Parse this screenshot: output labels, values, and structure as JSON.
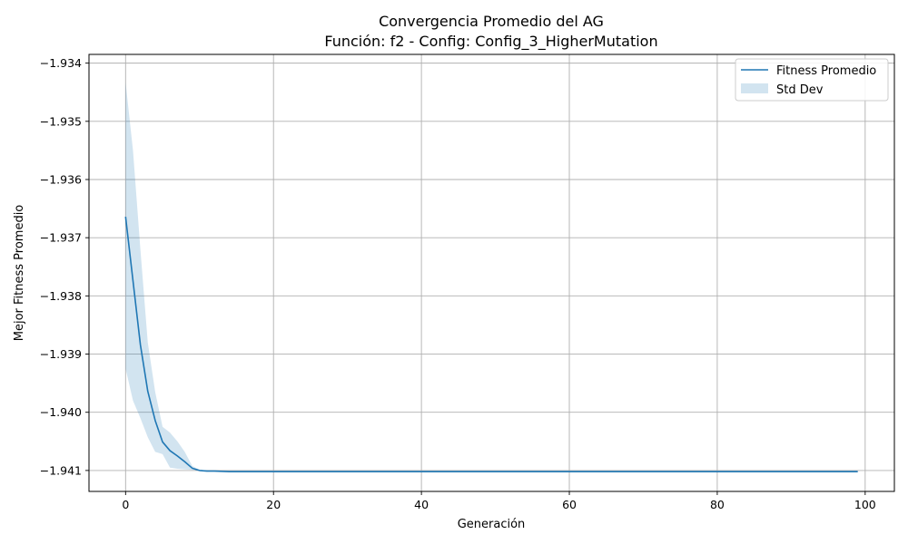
{
  "chart_data": {
    "type": "line",
    "title": "Convergencia Promedio del AG",
    "subtitle": "Función: f2 - Config: Config_3_HigherMutation",
    "xlabel": "Generación",
    "ylabel": "Mejor Fitness Promedio",
    "xlim": [
      -4.95,
      103.95
    ],
    "ylim": [
      -1.94136,
      -1.93385
    ],
    "xticks": [
      0,
      20,
      40,
      60,
      80,
      100
    ],
    "yticks": [
      -1.941,
      -1.94,
      -1.939,
      -1.938,
      -1.937,
      -1.936,
      -1.935,
      -1.934
    ],
    "ytick_labels": [
      "−1.941",
      "−1.940",
      "−1.939",
      "−1.938",
      "−1.937",
      "−1.936",
      "−1.935",
      "−1.934"
    ],
    "xtick_labels": [
      "0",
      "20",
      "40",
      "60",
      "80",
      "100"
    ],
    "grid": true,
    "legend_position": "top-right",
    "colors": {
      "line": "#1f77b4",
      "band": "#1f77b4",
      "grid": "#b0b0b0"
    },
    "series": [
      {
        "name": "Fitness Promedio",
        "kind": "line",
        "x": [
          0,
          1,
          2,
          3,
          4,
          5,
          6,
          7,
          8,
          9,
          10,
          11,
          12,
          14,
          20,
          30,
          40,
          50,
          60,
          70,
          80,
          90,
          99
        ],
        "y": [
          -1.93664,
          -1.93774,
          -1.93884,
          -1.93964,
          -1.94014,
          -1.94051,
          -1.94066,
          -1.94075,
          -1.94085,
          -1.94096,
          -1.941,
          -1.94101,
          -1.94101,
          -1.94102,
          -1.94102,
          -1.94102,
          -1.94102,
          -1.94102,
          -1.94102,
          -1.94102,
          -1.94102,
          -1.94102,
          -1.94102
        ]
      },
      {
        "name": "Std Dev",
        "kind": "band",
        "x": [
          0,
          1,
          2,
          3,
          4,
          5,
          6,
          7,
          8,
          9,
          10,
          11,
          12,
          14,
          20,
          30,
          40,
          50,
          60,
          70,
          80,
          90,
          99
        ],
        "upper": [
          -1.93433,
          -1.9355,
          -1.9372,
          -1.9388,
          -1.93965,
          -1.94025,
          -1.94035,
          -1.9405,
          -1.94068,
          -1.94092,
          -1.94099,
          -1.941,
          -1.94101,
          -1.94102,
          -1.94102,
          -1.94102,
          -1.94102,
          -1.94102,
          -1.94102,
          -1.94102,
          -1.94102,
          -1.94102,
          -1.94102
        ],
        "lower": [
          -1.93925,
          -1.9398,
          -1.9401,
          -1.94043,
          -1.94068,
          -1.94072,
          -1.94095,
          -1.94097,
          -1.94098,
          -1.94099,
          -1.94101,
          -1.94101,
          -1.94102,
          -1.94102,
          -1.94102,
          -1.94102,
          -1.94102,
          -1.94102,
          -1.94102,
          -1.94102,
          -1.94102,
          -1.94102,
          -1.94102
        ]
      }
    ]
  }
}
